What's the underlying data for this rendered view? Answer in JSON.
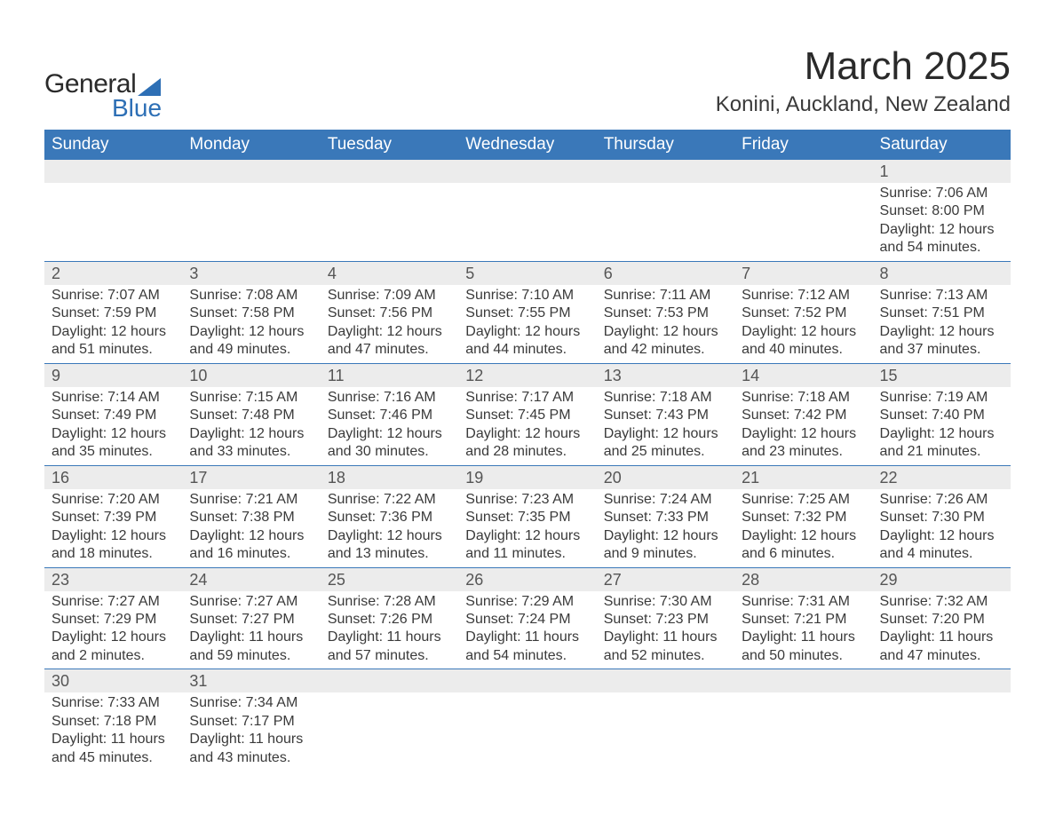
{
  "logo": {
    "word1": "General",
    "word2": "Blue"
  },
  "title": {
    "month": "March 2025",
    "location": "Konini, Auckland, New Zealand"
  },
  "colors": {
    "header_bg": "#3a78b9",
    "header_text": "#ffffff",
    "daynum_bg": "#ececec",
    "border": "#3a78b9",
    "text": "#3a3a3a",
    "logo_accent": "#2d6fb5"
  },
  "day_names": [
    "Sunday",
    "Monday",
    "Tuesday",
    "Wednesday",
    "Thursday",
    "Friday",
    "Saturday"
  ],
  "weeks": [
    [
      {
        "n": "",
        "sr": "",
        "ss": "",
        "dl": ""
      },
      {
        "n": "",
        "sr": "",
        "ss": "",
        "dl": ""
      },
      {
        "n": "",
        "sr": "",
        "ss": "",
        "dl": ""
      },
      {
        "n": "",
        "sr": "",
        "ss": "",
        "dl": ""
      },
      {
        "n": "",
        "sr": "",
        "ss": "",
        "dl": ""
      },
      {
        "n": "",
        "sr": "",
        "ss": "",
        "dl": ""
      },
      {
        "n": "1",
        "sr": "Sunrise: 7:06 AM",
        "ss": "Sunset: 8:00 PM",
        "dl": "Daylight: 12 hours and 54 minutes."
      }
    ],
    [
      {
        "n": "2",
        "sr": "Sunrise: 7:07 AM",
        "ss": "Sunset: 7:59 PM",
        "dl": "Daylight: 12 hours and 51 minutes."
      },
      {
        "n": "3",
        "sr": "Sunrise: 7:08 AM",
        "ss": "Sunset: 7:58 PM",
        "dl": "Daylight: 12 hours and 49 minutes."
      },
      {
        "n": "4",
        "sr": "Sunrise: 7:09 AM",
        "ss": "Sunset: 7:56 PM",
        "dl": "Daylight: 12 hours and 47 minutes."
      },
      {
        "n": "5",
        "sr": "Sunrise: 7:10 AM",
        "ss": "Sunset: 7:55 PM",
        "dl": "Daylight: 12 hours and 44 minutes."
      },
      {
        "n": "6",
        "sr": "Sunrise: 7:11 AM",
        "ss": "Sunset: 7:53 PM",
        "dl": "Daylight: 12 hours and 42 minutes."
      },
      {
        "n": "7",
        "sr": "Sunrise: 7:12 AM",
        "ss": "Sunset: 7:52 PM",
        "dl": "Daylight: 12 hours and 40 minutes."
      },
      {
        "n": "8",
        "sr": "Sunrise: 7:13 AM",
        "ss": "Sunset: 7:51 PM",
        "dl": "Daylight: 12 hours and 37 minutes."
      }
    ],
    [
      {
        "n": "9",
        "sr": "Sunrise: 7:14 AM",
        "ss": "Sunset: 7:49 PM",
        "dl": "Daylight: 12 hours and 35 minutes."
      },
      {
        "n": "10",
        "sr": "Sunrise: 7:15 AM",
        "ss": "Sunset: 7:48 PM",
        "dl": "Daylight: 12 hours and 33 minutes."
      },
      {
        "n": "11",
        "sr": "Sunrise: 7:16 AM",
        "ss": "Sunset: 7:46 PM",
        "dl": "Daylight: 12 hours and 30 minutes."
      },
      {
        "n": "12",
        "sr": "Sunrise: 7:17 AM",
        "ss": "Sunset: 7:45 PM",
        "dl": "Daylight: 12 hours and 28 minutes."
      },
      {
        "n": "13",
        "sr": "Sunrise: 7:18 AM",
        "ss": "Sunset: 7:43 PM",
        "dl": "Daylight: 12 hours and 25 minutes."
      },
      {
        "n": "14",
        "sr": "Sunrise: 7:18 AM",
        "ss": "Sunset: 7:42 PM",
        "dl": "Daylight: 12 hours and 23 minutes."
      },
      {
        "n": "15",
        "sr": "Sunrise: 7:19 AM",
        "ss": "Sunset: 7:40 PM",
        "dl": "Daylight: 12 hours and 21 minutes."
      }
    ],
    [
      {
        "n": "16",
        "sr": "Sunrise: 7:20 AM",
        "ss": "Sunset: 7:39 PM",
        "dl": "Daylight: 12 hours and 18 minutes."
      },
      {
        "n": "17",
        "sr": "Sunrise: 7:21 AM",
        "ss": "Sunset: 7:38 PM",
        "dl": "Daylight: 12 hours and 16 minutes."
      },
      {
        "n": "18",
        "sr": "Sunrise: 7:22 AM",
        "ss": "Sunset: 7:36 PM",
        "dl": "Daylight: 12 hours and 13 minutes."
      },
      {
        "n": "19",
        "sr": "Sunrise: 7:23 AM",
        "ss": "Sunset: 7:35 PM",
        "dl": "Daylight: 12 hours and 11 minutes."
      },
      {
        "n": "20",
        "sr": "Sunrise: 7:24 AM",
        "ss": "Sunset: 7:33 PM",
        "dl": "Daylight: 12 hours and 9 minutes."
      },
      {
        "n": "21",
        "sr": "Sunrise: 7:25 AM",
        "ss": "Sunset: 7:32 PM",
        "dl": "Daylight: 12 hours and 6 minutes."
      },
      {
        "n": "22",
        "sr": "Sunrise: 7:26 AM",
        "ss": "Sunset: 7:30 PM",
        "dl": "Daylight: 12 hours and 4 minutes."
      }
    ],
    [
      {
        "n": "23",
        "sr": "Sunrise: 7:27 AM",
        "ss": "Sunset: 7:29 PM",
        "dl": "Daylight: 12 hours and 2 minutes."
      },
      {
        "n": "24",
        "sr": "Sunrise: 7:27 AM",
        "ss": "Sunset: 7:27 PM",
        "dl": "Daylight: 11 hours and 59 minutes."
      },
      {
        "n": "25",
        "sr": "Sunrise: 7:28 AM",
        "ss": "Sunset: 7:26 PM",
        "dl": "Daylight: 11 hours and 57 minutes."
      },
      {
        "n": "26",
        "sr": "Sunrise: 7:29 AM",
        "ss": "Sunset: 7:24 PM",
        "dl": "Daylight: 11 hours and 54 minutes."
      },
      {
        "n": "27",
        "sr": "Sunrise: 7:30 AM",
        "ss": "Sunset: 7:23 PM",
        "dl": "Daylight: 11 hours and 52 minutes."
      },
      {
        "n": "28",
        "sr": "Sunrise: 7:31 AM",
        "ss": "Sunset: 7:21 PM",
        "dl": "Daylight: 11 hours and 50 minutes."
      },
      {
        "n": "29",
        "sr": "Sunrise: 7:32 AM",
        "ss": "Sunset: 7:20 PM",
        "dl": "Daylight: 11 hours and 47 minutes."
      }
    ],
    [
      {
        "n": "30",
        "sr": "Sunrise: 7:33 AM",
        "ss": "Sunset: 7:18 PM",
        "dl": "Daylight: 11 hours and 45 minutes."
      },
      {
        "n": "31",
        "sr": "Sunrise: 7:34 AM",
        "ss": "Sunset: 7:17 PM",
        "dl": "Daylight: 11 hours and 43 minutes."
      },
      {
        "n": "",
        "sr": "",
        "ss": "",
        "dl": ""
      },
      {
        "n": "",
        "sr": "",
        "ss": "",
        "dl": ""
      },
      {
        "n": "",
        "sr": "",
        "ss": "",
        "dl": ""
      },
      {
        "n": "",
        "sr": "",
        "ss": "",
        "dl": ""
      },
      {
        "n": "",
        "sr": "",
        "ss": "",
        "dl": ""
      }
    ]
  ]
}
